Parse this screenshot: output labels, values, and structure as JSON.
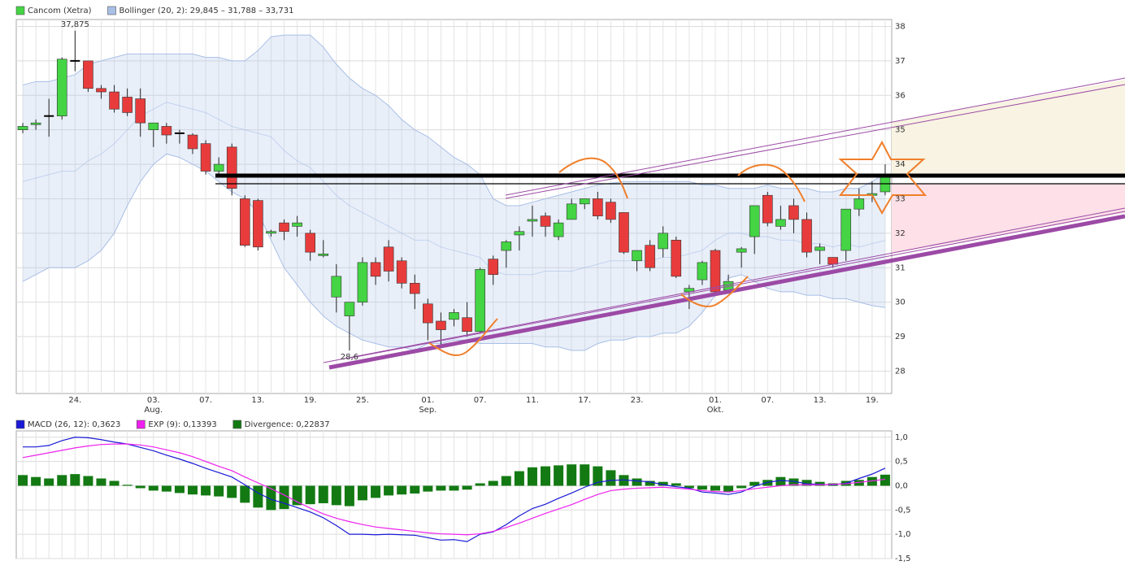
{
  "chart_data": [
    {
      "type": "candlestick",
      "name": "Cancom (Xetra)",
      "color_up": "#44d444",
      "color_down": "#e83c3c",
      "categories": [
        null,
        null,
        null,
        null,
        "24.",
        null,
        null,
        null,
        null,
        null,
        "03.",
        null,
        null,
        null,
        "07.",
        null,
        null,
        null,
        "13.",
        null,
        null,
        null,
        "19.",
        null,
        null,
        null,
        "25.",
        null,
        null,
        null,
        null,
        "01.",
        null,
        null,
        null,
        "07.",
        null,
        null,
        null,
        "11.",
        null,
        null,
        null,
        "17.",
        null,
        null,
        null,
        "23.",
        null,
        null,
        null,
        null,
        null,
        "01.",
        null,
        null,
        null,
        "07.",
        null,
        null,
        null,
        "13.",
        null,
        null,
        null,
        "19.",
        null
      ],
      "months": [
        null,
        null,
        null,
        null,
        null,
        null,
        null,
        null,
        null,
        null,
        "Aug.",
        null,
        null,
        null,
        null,
        null,
        null,
        null,
        null,
        null,
        null,
        null,
        null,
        null,
        null,
        null,
        null,
        null,
        null,
        null,
        null,
        "Sep.",
        null,
        null,
        null,
        null,
        null,
        null,
        null,
        null,
        null,
        null,
        null,
        null,
        null,
        null,
        null,
        null,
        null,
        null,
        null,
        null,
        null,
        "Okt.",
        null,
        null,
        null,
        null,
        null,
        null,
        null,
        null,
        null,
        null,
        null,
        null,
        null
      ],
      "open": [
        35.0,
        35.15,
        35.4,
        35.4,
        37.0,
        37.0,
        36.2,
        36.1,
        35.95,
        35.9,
        35.0,
        35.1,
        34.9,
        34.85,
        34.6,
        33.8,
        34.5,
        33.0,
        32.95,
        32.0,
        32.3,
        32.2,
        32.0,
        31.35,
        30.15,
        29.6,
        30.0,
        31.15,
        31.6,
        31.2,
        30.55,
        29.95,
        29.45,
        29.5,
        29.55,
        29.15,
        31.25,
        31.5,
        31.95,
        32.35,
        32.5,
        31.9,
        32.4,
        32.85,
        33.0,
        32.9,
        32.6,
        31.2,
        31.65,
        31.55,
        31.8,
        30.3,
        30.65,
        31.5,
        30.35,
        31.45,
        31.9,
        33.1,
        32.2,
        32.8,
        32.4,
        31.5,
        31.3,
        31.5,
        32.7,
        33.1,
        33.2
      ],
      "high": [
        35.2,
        35.3,
        35.9,
        37.1,
        37.875,
        37.0,
        36.3,
        36.3,
        36.2,
        36.2,
        35.2,
        35.2,
        35.0,
        34.9,
        34.7,
        34.2,
        34.6,
        33.1,
        33.0,
        32.1,
        32.4,
        32.5,
        32.1,
        31.8,
        31.1,
        30.0,
        31.3,
        31.3,
        31.8,
        31.3,
        30.8,
        30.1,
        29.7,
        29.8,
        30.0,
        31.0,
        31.35,
        31.8,
        32.2,
        32.8,
        32.6,
        32.4,
        33.0,
        33.0,
        33.2,
        33.0,
        32.6,
        31.5,
        31.8,
        32.2,
        31.9,
        30.5,
        31.2,
        31.55,
        30.8,
        31.6,
        32.8,
        33.2,
        32.8,
        33.0,
        32.6,
        31.7,
        31.3,
        32.7,
        33.3,
        33.5,
        34.0
      ],
      "low": [
        34.9,
        35.0,
        34.8,
        35.3,
        36.7,
        36.1,
        35.9,
        35.5,
        35.4,
        34.8,
        34.5,
        34.6,
        34.6,
        34.3,
        33.7,
        33.7,
        33.1,
        31.6,
        31.5,
        31.9,
        31.8,
        31.9,
        31.2,
        31.3,
        29.7,
        28.6,
        29.9,
        30.5,
        30.6,
        30.4,
        29.8,
        28.9,
        28.7,
        29.3,
        29.0,
        29.1,
        30.5,
        31.0,
        31.5,
        31.9,
        31.9,
        31.8,
        32.4,
        32.7,
        32.4,
        32.3,
        31.4,
        30.9,
        30.9,
        31.3,
        30.7,
        29.8,
        30.5,
        30.2,
        30.3,
        31.0,
        31.4,
        32.2,
        32.1,
        32.0,
        31.3,
        31.1,
        31.0,
        31.2,
        32.5,
        32.9,
        33.1
      ],
      "close": [
        35.1,
        35.2,
        35.4,
        37.05,
        37.0,
        36.2,
        36.1,
        35.6,
        35.5,
        35.2,
        35.2,
        34.85,
        34.9,
        34.45,
        33.8,
        34.0,
        33.3,
        31.65,
        31.6,
        32.05,
        32.05,
        32.3,
        31.45,
        31.4,
        30.75,
        30.0,
        31.15,
        30.75,
        30.9,
        30.55,
        30.25,
        29.4,
        29.2,
        29.7,
        29.15,
        30.95,
        30.8,
        31.75,
        32.05,
        32.4,
        32.2,
        32.3,
        32.85,
        33.0,
        32.5,
        32.4,
        31.45,
        31.5,
        31.0,
        32.0,
        30.75,
        30.4,
        31.15,
        30.3,
        30.6,
        31.55,
        32.8,
        32.3,
        32.4,
        32.4,
        31.45,
        31.6,
        31.1,
        32.7,
        33.0,
        33.15,
        33.7
      ],
      "bollinger": {
        "name": "Bollinger (20, 2): 29,845 – 31,788 – 33,731",
        "color": "#a8bfe6",
        "upper": [
          36.3,
          36.4,
          36.4,
          36.5,
          36.6,
          36.9,
          37.0,
          37.1,
          37.2,
          37.2,
          37.2,
          37.2,
          37.2,
          37.2,
          37.1,
          37.1,
          37.0,
          37.0,
          37.3,
          37.7,
          37.75,
          37.75,
          37.75,
          37.4,
          36.9,
          36.5,
          36.2,
          36.0,
          35.7,
          35.3,
          35.0,
          34.8,
          34.5,
          34.2,
          34.0,
          33.7,
          33.0,
          32.8,
          32.8,
          32.9,
          33.0,
          33.1,
          33.2,
          33.3,
          33.4,
          33.45,
          33.5,
          33.5,
          33.5,
          33.5,
          33.5,
          33.5,
          33.4,
          33.4,
          33.3,
          33.3,
          33.3,
          33.4,
          33.3,
          33.3,
          33.3,
          33.2,
          33.2,
          33.3,
          33.3,
          33.5,
          33.731
        ],
        "middle": [
          33.5,
          33.6,
          33.7,
          33.8,
          33.8,
          34.1,
          34.3,
          34.6,
          35.0,
          35.4,
          35.6,
          35.8,
          35.7,
          35.6,
          35.5,
          35.3,
          35.1,
          35.0,
          34.9,
          34.8,
          34.4,
          34.1,
          33.9,
          33.5,
          33.1,
          32.8,
          32.6,
          32.4,
          32.2,
          32.0,
          31.8,
          31.8,
          31.6,
          31.5,
          31.4,
          31.3,
          30.9,
          30.8,
          30.8,
          30.8,
          30.9,
          30.9,
          30.9,
          31.0,
          31.1,
          31.2,
          31.2,
          31.2,
          31.2,
          31.3,
          31.3,
          31.4,
          31.5,
          31.8,
          32.0,
          32.0,
          31.9,
          31.9,
          31.8,
          31.8,
          31.7,
          31.7,
          31.6,
          31.7,
          31.6,
          31.7,
          31.788
        ],
        "lower": [
          30.6,
          30.8,
          31.0,
          31.0,
          31.0,
          31.2,
          31.5,
          32.0,
          32.8,
          33.5,
          34.0,
          34.3,
          34.2,
          34.0,
          33.8,
          33.5,
          33.2,
          33.0,
          32.6,
          31.8,
          31.0,
          30.5,
          30.0,
          29.6,
          29.3,
          29.1,
          28.9,
          28.8,
          28.7,
          28.7,
          28.6,
          28.8,
          28.8,
          28.9,
          28.9,
          28.8,
          28.8,
          28.8,
          28.8,
          28.8,
          28.7,
          28.7,
          28.6,
          28.6,
          28.8,
          28.9,
          28.9,
          29.0,
          29.0,
          29.1,
          29.1,
          29.3,
          29.7,
          30.2,
          30.7,
          30.8,
          30.6,
          30.4,
          30.3,
          30.3,
          30.2,
          30.2,
          30.1,
          30.1,
          30.0,
          29.9,
          29.845
        ]
      },
      "annotations": [
        "37,875",
        "28,6"
      ],
      "ylim": [
        27.35,
        38.2
      ],
      "yticks": [
        28,
        29,
        30,
        31,
        32,
        33,
        34,
        35,
        36,
        37,
        38
      ],
      "grid": true
    },
    {
      "type": "macd",
      "series": [
        {
          "name": "MACD (26, 12): 0,3623",
          "color": "#1a1ad6",
          "values": [
            0.8,
            0.8,
            0.83,
            0.93,
            1.0,
            0.99,
            0.95,
            0.9,
            0.86,
            0.79,
            0.72,
            0.63,
            0.55,
            0.46,
            0.36,
            0.27,
            0.18,
            0.02,
            -0.15,
            -0.28,
            -0.36,
            -0.45,
            -0.54,
            -0.66,
            -0.82,
            -1.0,
            -1.0,
            -1.01,
            -1.0,
            -1.01,
            -1.02,
            -1.07,
            -1.12,
            -1.11,
            -1.15,
            -1.0,
            -0.95,
            -0.8,
            -0.62,
            -0.47,
            -0.38,
            -0.26,
            -0.15,
            -0.03,
            0.07,
            0.11,
            0.12,
            0.1,
            0.08,
            0.02,
            -0.02,
            -0.05,
            -0.13,
            -0.15,
            -0.18,
            -0.13,
            -0.01,
            0.07,
            0.11,
            0.09,
            0.04,
            0.03,
            0.02,
            0.05,
            0.15,
            0.24,
            0.3623
          ]
        },
        {
          "name": "EXP (9): 0,13393",
          "color": "#ee22ee",
          "values": [
            0.58,
            0.63,
            0.68,
            0.73,
            0.78,
            0.82,
            0.85,
            0.86,
            0.86,
            0.84,
            0.8,
            0.74,
            0.68,
            0.6,
            0.5,
            0.4,
            0.31,
            0.18,
            0.06,
            -0.06,
            -0.19,
            -0.33,
            -0.46,
            -0.58,
            -0.67,
            -0.74,
            -0.8,
            -0.85,
            -0.88,
            -0.91,
            -0.94,
            -0.97,
            -0.99,
            -1.0,
            -1.01,
            -0.99,
            -0.94,
            -0.86,
            -0.77,
            -0.67,
            -0.57,
            -0.48,
            -0.39,
            -0.28,
            -0.18,
            -0.1,
            -0.07,
            -0.05,
            -0.04,
            -0.03,
            -0.05,
            -0.07,
            -0.1,
            -0.12,
            -0.13,
            -0.1,
            -0.06,
            -0.03,
            0.0,
            0.02,
            0.02,
            0.02,
            0.03,
            0.04,
            0.07,
            0.1,
            0.13393
          ]
        },
        {
          "name": "Divergence: 0,22837",
          "color": "#137a13",
          "kind": "bar",
          "values": [
            0.22,
            0.18,
            0.15,
            0.22,
            0.24,
            0.2,
            0.15,
            0.1,
            0.02,
            -0.05,
            -0.1,
            -0.12,
            -0.15,
            -0.18,
            -0.2,
            -0.22,
            -0.25,
            -0.35,
            -0.45,
            -0.5,
            -0.48,
            -0.4,
            -0.38,
            -0.36,
            -0.4,
            -0.42,
            -0.3,
            -0.25,
            -0.2,
            -0.18,
            -0.16,
            -0.12,
            -0.1,
            -0.1,
            -0.08,
            0.05,
            0.1,
            0.2,
            0.3,
            0.38,
            0.4,
            0.42,
            0.44,
            0.44,
            0.4,
            0.32,
            0.22,
            0.15,
            0.1,
            0.08,
            0.05,
            -0.05,
            -0.08,
            -0.1,
            -0.12,
            -0.05,
            0.08,
            0.12,
            0.18,
            0.15,
            0.12,
            0.08,
            0.05,
            0.1,
            0.12,
            0.18,
            0.22837
          ]
        }
      ],
      "ylim": [
        -1.5,
        1.13
      ],
      "yticks": [
        {
          "value": 1.0,
          "label": "1,0"
        },
        {
          "value": 0.5,
          "label": "0,5"
        },
        {
          "value": 0,
          "label": "0,0"
        },
        {
          "value": -0.5,
          "label": "-0,5"
        },
        {
          "value": -1.0,
          "label": "-1,0"
        },
        {
          "value": -1.5,
          "label": "-1,5"
        }
      ],
      "grid": true
    }
  ]
}
